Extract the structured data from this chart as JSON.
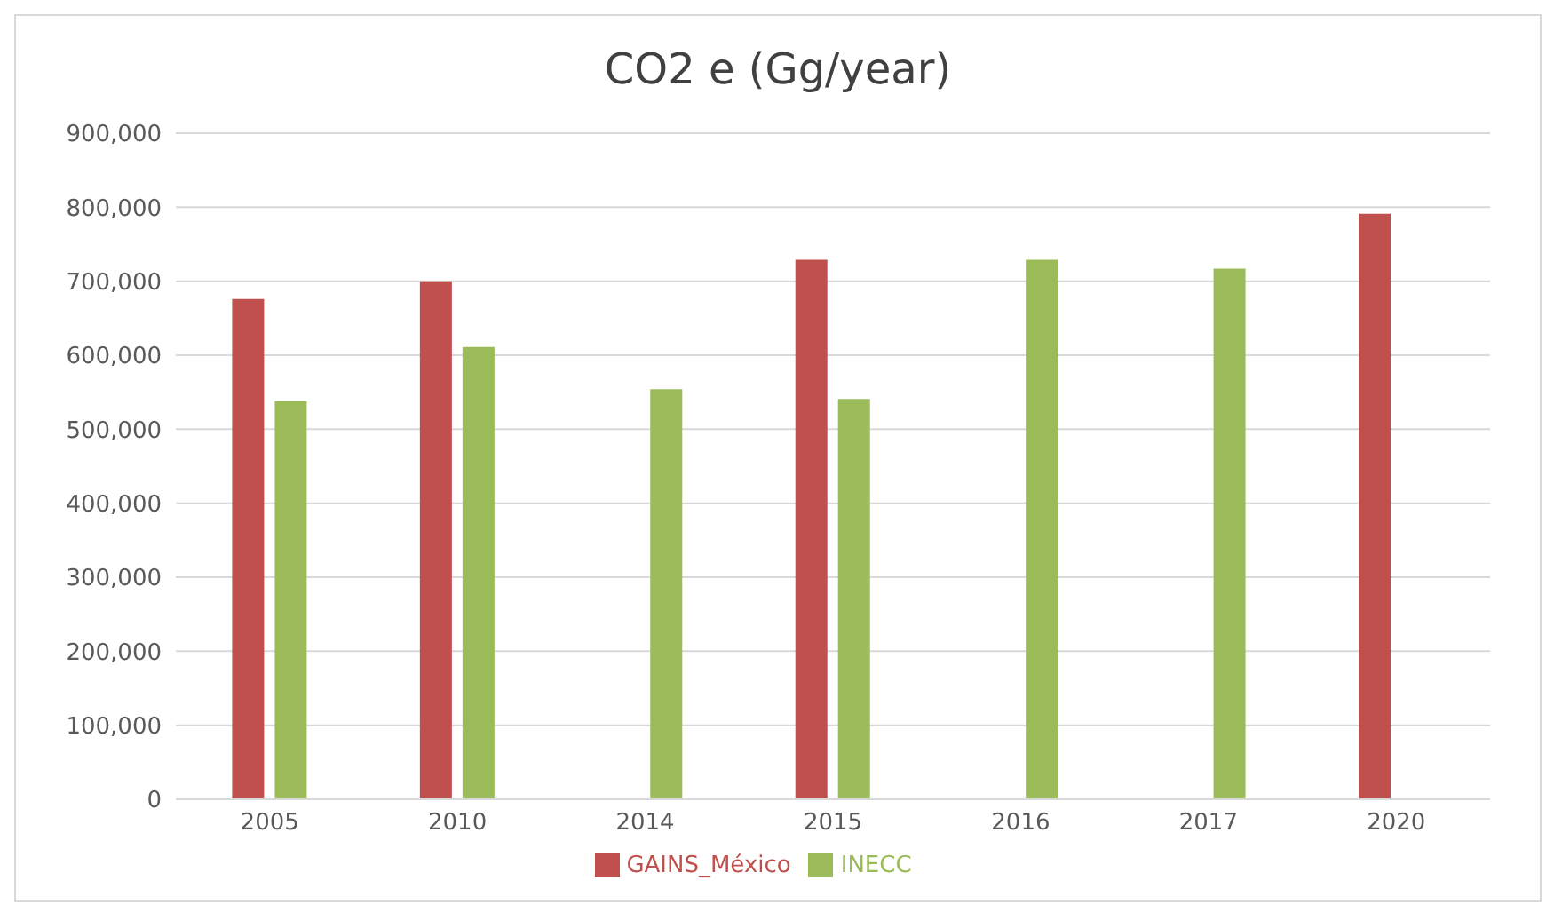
{
  "chart_data": {
    "type": "bar",
    "title": "CO2 e (Gg/year)",
    "categories": [
      "2005",
      "2010",
      "2014",
      "2015",
      "2016",
      "2017",
      "2020"
    ],
    "series": [
      {
        "name": "GAINS_México",
        "color": "#c0504d",
        "values": [
          676000,
          700000,
          null,
          729000,
          null,
          null,
          791000
        ]
      },
      {
        "name": "INECC",
        "color": "#9bbb59",
        "values": [
          538000,
          611000,
          554000,
          541000,
          729000,
          717000,
          null
        ]
      }
    ],
    "ylim": [
      0,
      900000
    ],
    "yticks": [
      0,
      {
        "value": 100000,
        "label": "100,000"
      },
      {
        "value": 200000,
        "label": "200,000"
      },
      {
        "value": 300000,
        "label": "300,000"
      },
      {
        "value": 400000,
        "label": "400,000"
      },
      {
        "value": 500000,
        "label": "500,000"
      },
      {
        "value": 600000,
        "label": "600,000"
      },
      {
        "value": 700000,
        "label": "700,000"
      },
      {
        "value": 800000,
        "label": "800,000"
      },
      {
        "value": 900000,
        "label": "900,000"
      }
    ],
    "grid": "y",
    "legend": "bottom"
  }
}
